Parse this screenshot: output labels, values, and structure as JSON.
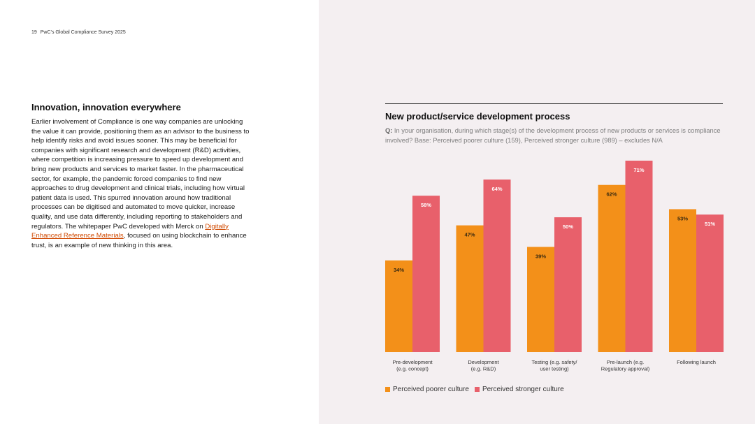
{
  "header": {
    "page_number": "19",
    "publication": "PwC’s Global Compliance Survey 2025"
  },
  "article": {
    "heading": "Innovation, innovation everywhere",
    "body_before_link": "Earlier involvement of Compliance is one way companies are unlocking the value it can provide, positioning them as an advisor to the business to help identify risks and avoid issues sooner. This may be beneficial for companies with significant research and development (R&D) activities, where competition is increasing pressure to speed up development and bring new products and services to market faster. In the pharmaceutical sector, for example, the pandemic forced companies to find new approaches to drug development and clinical trials, including how virtual patient data is used. This spurred innovation around how traditional processes can be digitised and automated to move quicker, increase quality, and use data differently, including reporting to stakeholders and regulators. The whitepaper PwC developed with Merck on ",
    "link_text": "Digitally Enhanced Reference Materials",
    "body_after_link": ", focused on using blockchain to enhance trust, is an example of new thinking in this area."
  },
  "chart_data": {
    "type": "bar",
    "title": "New product/service development process",
    "question_label": "Q:",
    "question_text": "In your organisation, during which stage(s) of the development process of new products or services is compliance involved? Base: Perceived poorer culture (159), Perceived stronger culture (989) – excludes N/A",
    "categories": [
      [
        "Pre-development",
        "(e.g. concept)"
      ],
      [
        "Development",
        "(e.g. R&D)"
      ],
      [
        "Testing (e.g. safety/",
        "user testing)"
      ],
      [
        "Pre-launch (e.g.",
        "Regulatory approval)"
      ],
      [
        "Following launch"
      ]
    ],
    "series": [
      {
        "name": "Perceived poorer culture",
        "color": "#f39019",
        "values": [
          34,
          47,
          39,
          62,
          53
        ],
        "labels": [
          "34%",
          "47%",
          "39%",
          "62%",
          "53%"
        ]
      },
      {
        "name": "Perceived stronger culture",
        "color": "#e8606b",
        "values": [
          58,
          64,
          50,
          71,
          51
        ],
        "labels": [
          "58%",
          "64%",
          "50%",
          "71%",
          "51%"
        ]
      }
    ],
    "ylim": [
      0,
      71
    ],
    "xlabel": "",
    "ylabel": "",
    "grid": false,
    "legend": "bottom-left"
  }
}
